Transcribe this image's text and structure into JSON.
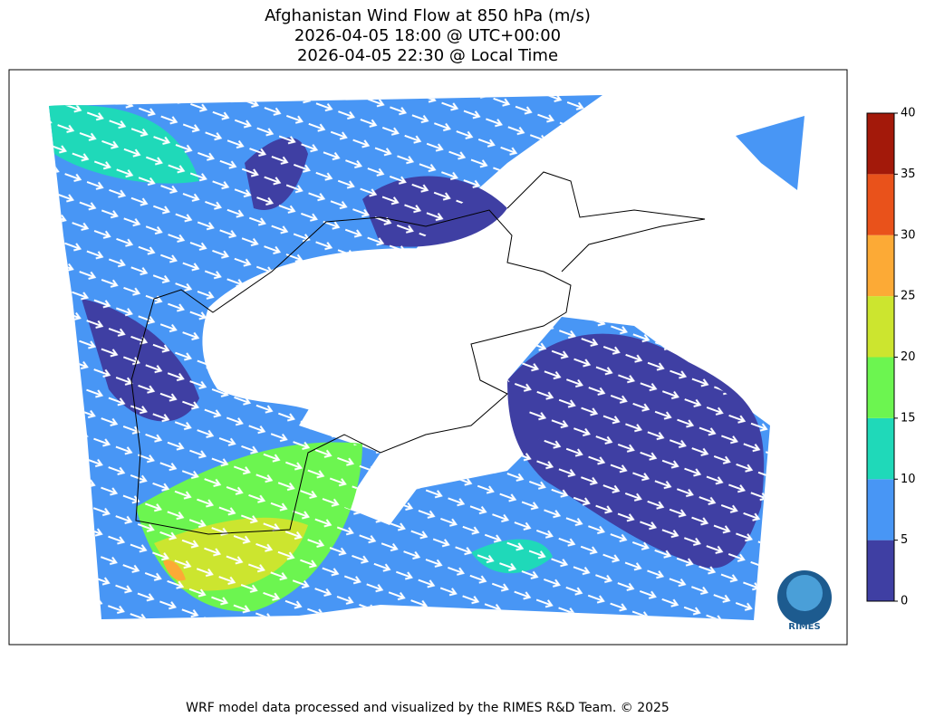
{
  "title": [
    "Afghanistan Wind Flow at 850 hPa (m/s)",
    "2026-04-05 18:00 @ UTC+00:00",
    "2026-04-05 22:30 @ Local Time"
  ],
  "colorbar": {
    "lim": [
      0,
      40
    ],
    "ticks": [
      0,
      5,
      10,
      15,
      20,
      25,
      30,
      35,
      40
    ],
    "colors": [
      "#3f3fa3",
      "#4896f5",
      "#1fd9b9",
      "#6cf550",
      "#cce52f",
      "#fcaa36",
      "#e9521b",
      "#a3190a"
    ]
  },
  "logo": "RIMES",
  "footer": "WRF model data processed and visualized by the RIMES R&D Team. © 2025"
}
